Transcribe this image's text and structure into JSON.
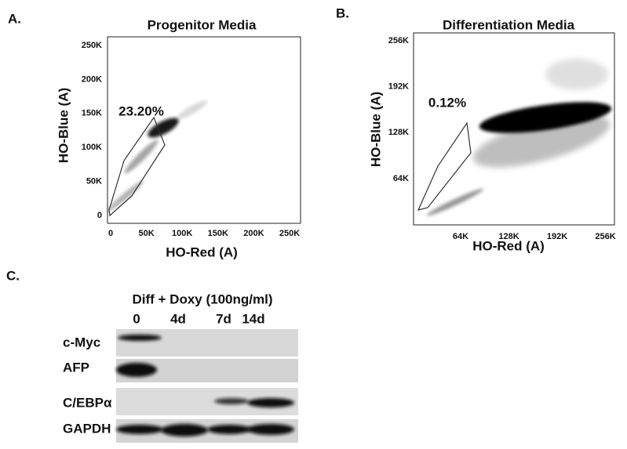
{
  "panels": [
    {
      "letter": "A.",
      "title": "Progenitor Media",
      "x_label": "HO-Red (A)",
      "y_label": "HO-Blue (A)",
      "xticks": [
        "0",
        "50K",
        "100K",
        "150K",
        "200K",
        "250K"
      ],
      "yticks": [
        "0",
        "50K",
        "100K",
        "150K",
        "200K",
        "250K"
      ],
      "gate_label": "23.20%"
    },
    {
      "letter": "B.",
      "title": "Differentiation Media",
      "x_label": "HO-Red (A)",
      "y_label": "HO-Blue (A)",
      "xticks": [
        "64K",
        "128K",
        "192K",
        "256K"
      ],
      "yticks": [
        "64K",
        "128K",
        "192K",
        "256K"
      ],
      "gate_label": "0.12%"
    }
  ],
  "blot": {
    "letter": "C.",
    "treatment": "Diff + Doxy (100ng/ml)",
    "lanes": [
      "0",
      "4d",
      "7d",
      "14d"
    ],
    "rows": [
      "c-Myc",
      "AFP",
      "C/EBPα",
      "GAPDH"
    ]
  }
}
